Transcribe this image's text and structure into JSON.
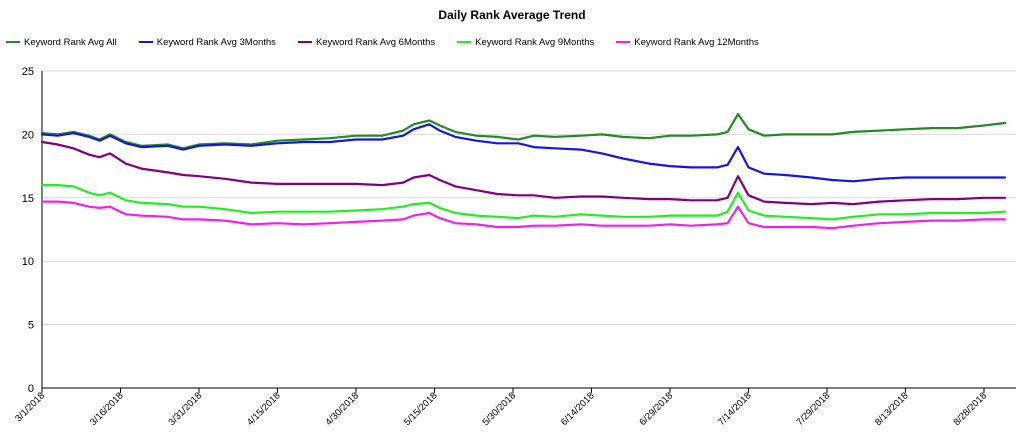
{
  "chart_data": {
    "type": "line",
    "title": "Daily Rank Average Trend",
    "xlabel": "",
    "ylabel": "",
    "ylim": [
      0,
      25
    ],
    "y_ticks": [
      0,
      5,
      10,
      15,
      20,
      25
    ],
    "grid": "horizontal",
    "legend_position": "top-left",
    "x_start": "3/1/2018",
    "x_ticks": [
      "3/1/2018",
      "3/16/2018",
      "3/31/2018",
      "4/15/2018",
      "4/30/2018",
      "5/15/2018",
      "5/30/2018",
      "6/14/2018",
      "6/29/2018",
      "7/14/2018",
      "7/29/2018",
      "8/13/2018",
      "8/28/2018"
    ],
    "series": [
      {
        "name": "Keyword Rank Avg All",
        "color": "#228B22",
        "points": [
          [
            "3/1/2018",
            20.1
          ],
          [
            "3/4/2018",
            20.0
          ],
          [
            "3/7/2018",
            20.2
          ],
          [
            "3/10/2018",
            19.9
          ],
          [
            "3/12/2018",
            19.6
          ],
          [
            "3/14/2018",
            20.0
          ],
          [
            "3/17/2018",
            19.4
          ],
          [
            "3/20/2018",
            19.1
          ],
          [
            "3/25/2018",
            19.2
          ],
          [
            "3/28/2018",
            18.9
          ],
          [
            "3/31/2018",
            19.2
          ],
          [
            "4/5/2018",
            19.3
          ],
          [
            "4/10/2018",
            19.2
          ],
          [
            "4/15/2018",
            19.5
          ],
          [
            "4/20/2018",
            19.6
          ],
          [
            "4/25/2018",
            19.7
          ],
          [
            "4/30/2018",
            19.9
          ],
          [
            "5/5/2018",
            19.9
          ],
          [
            "5/9/2018",
            20.3
          ],
          [
            "5/11/2018",
            20.8
          ],
          [
            "5/14/2018",
            21.1
          ],
          [
            "5/16/2018",
            20.7
          ],
          [
            "5/19/2018",
            20.2
          ],
          [
            "5/23/2018",
            19.9
          ],
          [
            "5/27/2018",
            19.8
          ],
          [
            "5/31/2018",
            19.6
          ],
          [
            "6/3/2018",
            19.9
          ],
          [
            "6/7/2018",
            19.8
          ],
          [
            "6/12/2018",
            19.9
          ],
          [
            "6/16/2018",
            20.0
          ],
          [
            "6/20/2018",
            19.8
          ],
          [
            "6/25/2018",
            19.7
          ],
          [
            "6/29/2018",
            19.9
          ],
          [
            "7/3/2018",
            19.9
          ],
          [
            "7/8/2018",
            20.0
          ],
          [
            "7/10/2018",
            20.2
          ],
          [
            "7/12/2018",
            21.6
          ],
          [
            "7/14/2018",
            20.4
          ],
          [
            "7/17/2018",
            19.9
          ],
          [
            "7/21/2018",
            20.0
          ],
          [
            "7/26/2018",
            20.0
          ],
          [
            "7/30/2018",
            20.0
          ],
          [
            "8/3/2018",
            20.2
          ],
          [
            "8/8/2018",
            20.3
          ],
          [
            "8/13/2018",
            20.4
          ],
          [
            "8/18/2018",
            20.5
          ],
          [
            "8/23/2018",
            20.5
          ],
          [
            "8/28/2018",
            20.7
          ],
          [
            "9/1/2018",
            20.9
          ]
        ]
      },
      {
        "name": "Keyword Rank Avg 3Months",
        "color": "#1515DD",
        "points": [
          [
            "3/1/2018",
            20.0
          ],
          [
            "3/4/2018",
            19.9
          ],
          [
            "3/7/2018",
            20.1
          ],
          [
            "3/10/2018",
            19.8
          ],
          [
            "3/12/2018",
            19.5
          ],
          [
            "3/14/2018",
            19.9
          ],
          [
            "3/17/2018",
            19.3
          ],
          [
            "3/20/2018",
            19.0
          ],
          [
            "3/25/2018",
            19.1
          ],
          [
            "3/28/2018",
            18.8
          ],
          [
            "3/31/2018",
            19.1
          ],
          [
            "4/5/2018",
            19.2
          ],
          [
            "4/10/2018",
            19.1
          ],
          [
            "4/15/2018",
            19.3
          ],
          [
            "4/20/2018",
            19.4
          ],
          [
            "4/25/2018",
            19.4
          ],
          [
            "4/30/2018",
            19.6
          ],
          [
            "5/5/2018",
            19.6
          ],
          [
            "5/9/2018",
            19.9
          ],
          [
            "5/11/2018",
            20.4
          ],
          [
            "5/14/2018",
            20.8
          ],
          [
            "5/16/2018",
            20.3
          ],
          [
            "5/19/2018",
            19.8
          ],
          [
            "5/23/2018",
            19.5
          ],
          [
            "5/27/2018",
            19.3
          ],
          [
            "5/31/2018",
            19.3
          ],
          [
            "6/3/2018",
            19.0
          ],
          [
            "6/7/2018",
            18.9
          ],
          [
            "6/12/2018",
            18.8
          ],
          [
            "6/16/2018",
            18.5
          ],
          [
            "6/20/2018",
            18.1
          ],
          [
            "6/25/2018",
            17.7
          ],
          [
            "6/29/2018",
            17.5
          ],
          [
            "7/3/2018",
            17.4
          ],
          [
            "7/8/2018",
            17.4
          ],
          [
            "7/10/2018",
            17.6
          ],
          [
            "7/12/2018",
            19.0
          ],
          [
            "7/14/2018",
            17.4
          ],
          [
            "7/17/2018",
            16.9
          ],
          [
            "7/21/2018",
            16.8
          ],
          [
            "7/26/2018",
            16.6
          ],
          [
            "7/30/2018",
            16.4
          ],
          [
            "8/3/2018",
            16.3
          ],
          [
            "8/8/2018",
            16.5
          ],
          [
            "8/13/2018",
            16.6
          ],
          [
            "8/18/2018",
            16.6
          ],
          [
            "8/23/2018",
            16.6
          ],
          [
            "8/28/2018",
            16.6
          ],
          [
            "9/1/2018",
            16.6
          ]
        ]
      },
      {
        "name": "Keyword Rank Avg 6Months",
        "color": "#800080",
        "points": [
          [
            "3/1/2018",
            19.4
          ],
          [
            "3/4/2018",
            19.2
          ],
          [
            "3/7/2018",
            18.9
          ],
          [
            "3/10/2018",
            18.4
          ],
          [
            "3/12/2018",
            18.2
          ],
          [
            "3/14/2018",
            18.5
          ],
          [
            "3/17/2018",
            17.7
          ],
          [
            "3/20/2018",
            17.3
          ],
          [
            "3/25/2018",
            17.0
          ],
          [
            "3/28/2018",
            16.8
          ],
          [
            "3/31/2018",
            16.7
          ],
          [
            "4/5/2018",
            16.5
          ],
          [
            "4/10/2018",
            16.2
          ],
          [
            "4/15/2018",
            16.1
          ],
          [
            "4/20/2018",
            16.1
          ],
          [
            "4/25/2018",
            16.1
          ],
          [
            "4/30/2018",
            16.1
          ],
          [
            "5/5/2018",
            16.0
          ],
          [
            "5/9/2018",
            16.2
          ],
          [
            "5/11/2018",
            16.6
          ],
          [
            "5/14/2018",
            16.8
          ],
          [
            "5/16/2018",
            16.4
          ],
          [
            "5/19/2018",
            15.9
          ],
          [
            "5/23/2018",
            15.6
          ],
          [
            "5/27/2018",
            15.3
          ],
          [
            "5/31/2018",
            15.2
          ],
          [
            "6/3/2018",
            15.2
          ],
          [
            "6/7/2018",
            15.0
          ],
          [
            "6/12/2018",
            15.1
          ],
          [
            "6/16/2018",
            15.1
          ],
          [
            "6/20/2018",
            15.0
          ],
          [
            "6/25/2018",
            14.9
          ],
          [
            "6/29/2018",
            14.9
          ],
          [
            "7/3/2018",
            14.8
          ],
          [
            "7/8/2018",
            14.8
          ],
          [
            "7/10/2018",
            15.0
          ],
          [
            "7/12/2018",
            16.7
          ],
          [
            "7/14/2018",
            15.2
          ],
          [
            "7/17/2018",
            14.7
          ],
          [
            "7/21/2018",
            14.6
          ],
          [
            "7/26/2018",
            14.5
          ],
          [
            "7/30/2018",
            14.6
          ],
          [
            "8/3/2018",
            14.5
          ],
          [
            "8/8/2018",
            14.7
          ],
          [
            "8/13/2018",
            14.8
          ],
          [
            "8/18/2018",
            14.9
          ],
          [
            "8/23/2018",
            14.9
          ],
          [
            "8/28/2018",
            15.0
          ],
          [
            "9/1/2018",
            15.0
          ]
        ]
      },
      {
        "name": "Keyword Rank Avg 9Months",
        "color": "#22EE22",
        "points": [
          [
            "3/1/2018",
            16.0
          ],
          [
            "3/4/2018",
            16.0
          ],
          [
            "3/7/2018",
            15.9
          ],
          [
            "3/10/2018",
            15.4
          ],
          [
            "3/12/2018",
            15.2
          ],
          [
            "3/14/2018",
            15.4
          ],
          [
            "3/17/2018",
            14.8
          ],
          [
            "3/20/2018",
            14.6
          ],
          [
            "3/25/2018",
            14.5
          ],
          [
            "3/28/2018",
            14.3
          ],
          [
            "3/31/2018",
            14.3
          ],
          [
            "4/5/2018",
            14.1
          ],
          [
            "4/10/2018",
            13.8
          ],
          [
            "4/15/2018",
            13.9
          ],
          [
            "4/20/2018",
            13.9
          ],
          [
            "4/25/2018",
            13.9
          ],
          [
            "4/30/2018",
            14.0
          ],
          [
            "5/5/2018",
            14.1
          ],
          [
            "5/9/2018",
            14.3
          ],
          [
            "5/11/2018",
            14.5
          ],
          [
            "5/14/2018",
            14.6
          ],
          [
            "5/16/2018",
            14.2
          ],
          [
            "5/19/2018",
            13.8
          ],
          [
            "5/23/2018",
            13.6
          ],
          [
            "5/27/2018",
            13.5
          ],
          [
            "5/31/2018",
            13.4
          ],
          [
            "6/3/2018",
            13.6
          ],
          [
            "6/7/2018",
            13.5
          ],
          [
            "6/12/2018",
            13.7
          ],
          [
            "6/16/2018",
            13.6
          ],
          [
            "6/20/2018",
            13.5
          ],
          [
            "6/25/2018",
            13.5
          ],
          [
            "6/29/2018",
            13.6
          ],
          [
            "7/3/2018",
            13.6
          ],
          [
            "7/8/2018",
            13.6
          ],
          [
            "7/10/2018",
            13.9
          ],
          [
            "7/12/2018",
            15.4
          ],
          [
            "7/14/2018",
            14.0
          ],
          [
            "7/17/2018",
            13.6
          ],
          [
            "7/21/2018",
            13.5
          ],
          [
            "7/26/2018",
            13.4
          ],
          [
            "7/30/2018",
            13.3
          ],
          [
            "8/3/2018",
            13.5
          ],
          [
            "8/8/2018",
            13.7
          ],
          [
            "8/13/2018",
            13.7
          ],
          [
            "8/18/2018",
            13.8
          ],
          [
            "8/23/2018",
            13.8
          ],
          [
            "8/28/2018",
            13.8
          ],
          [
            "9/1/2018",
            13.9
          ]
        ]
      },
      {
        "name": "Keyword Rank Avg 12Months",
        "color": "#EE22EE",
        "points": [
          [
            "3/1/2018",
            14.7
          ],
          [
            "3/4/2018",
            14.7
          ],
          [
            "3/7/2018",
            14.6
          ],
          [
            "3/10/2018",
            14.3
          ],
          [
            "3/12/2018",
            14.2
          ],
          [
            "3/14/2018",
            14.3
          ],
          [
            "3/17/2018",
            13.7
          ],
          [
            "3/20/2018",
            13.6
          ],
          [
            "3/25/2018",
            13.5
          ],
          [
            "3/28/2018",
            13.3
          ],
          [
            "3/31/2018",
            13.3
          ],
          [
            "4/5/2018",
            13.2
          ],
          [
            "4/10/2018",
            12.9
          ],
          [
            "4/15/2018",
            13.0
          ],
          [
            "4/20/2018",
            12.9
          ],
          [
            "4/25/2018",
            13.0
          ],
          [
            "4/30/2018",
            13.1
          ],
          [
            "5/5/2018",
            13.2
          ],
          [
            "5/9/2018",
            13.3
          ],
          [
            "5/11/2018",
            13.6
          ],
          [
            "5/14/2018",
            13.8
          ],
          [
            "5/16/2018",
            13.4
          ],
          [
            "5/19/2018",
            13.0
          ],
          [
            "5/23/2018",
            12.9
          ],
          [
            "5/27/2018",
            12.7
          ],
          [
            "5/31/2018",
            12.7
          ],
          [
            "6/3/2018",
            12.8
          ],
          [
            "6/7/2018",
            12.8
          ],
          [
            "6/12/2018",
            12.9
          ],
          [
            "6/16/2018",
            12.8
          ],
          [
            "6/20/2018",
            12.8
          ],
          [
            "6/25/2018",
            12.8
          ],
          [
            "6/29/2018",
            12.9
          ],
          [
            "7/3/2018",
            12.8
          ],
          [
            "7/8/2018",
            12.9
          ],
          [
            "7/10/2018",
            13.0
          ],
          [
            "7/12/2018",
            14.3
          ],
          [
            "7/14/2018",
            13.0
          ],
          [
            "7/17/2018",
            12.7
          ],
          [
            "7/21/2018",
            12.7
          ],
          [
            "7/26/2018",
            12.7
          ],
          [
            "7/30/2018",
            12.6
          ],
          [
            "8/3/2018",
            12.8
          ],
          [
            "8/8/2018",
            13.0
          ],
          [
            "8/13/2018",
            13.1
          ],
          [
            "8/18/2018",
            13.2
          ],
          [
            "8/23/2018",
            13.2
          ],
          [
            "8/28/2018",
            13.3
          ],
          [
            "9/1/2018",
            13.3
          ]
        ]
      }
    ]
  }
}
